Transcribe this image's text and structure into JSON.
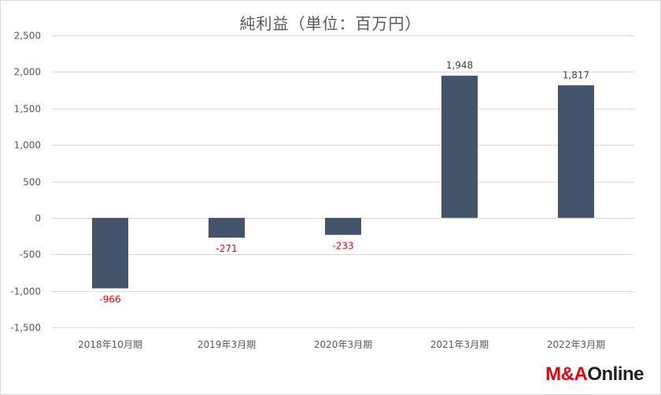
{
  "chart_data": {
    "type": "bar",
    "title": "純利益（単位：百万円）",
    "categories": [
      "2018年10月期",
      "2019年3月期",
      "2020年3月期",
      "2021年3月期",
      "2022年3月期"
    ],
    "values": [
      -966,
      -271,
      -233,
      1948,
      1817
    ],
    "data_labels": [
      "-966",
      "-271",
      "-233",
      "1,948",
      "1,817"
    ],
    "ylim": [
      -1500,
      2500
    ],
    "yticks": [
      2500,
      2000,
      1500,
      1000,
      500,
      0,
      -500,
      -1000,
      -1500
    ],
    "ytick_labels": [
      "2,500",
      "2,000",
      "1,500",
      "1,000",
      "500",
      "0",
      "-500",
      "-1,000",
      "-1,500"
    ],
    "grid": true,
    "bar_color": "#44546a",
    "negative_label_color": "#ff0000",
    "positive_label_color": "#404040"
  },
  "logo": {
    "part1": "M&A",
    "part2": "Online"
  }
}
